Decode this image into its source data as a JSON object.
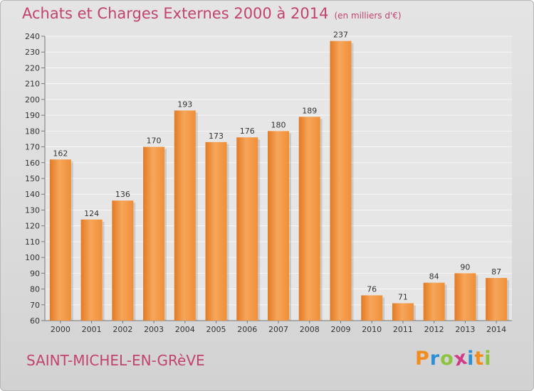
{
  "chart_data": {
    "type": "bar",
    "title": "Achats et Charges Externes 2000 à 2014",
    "subtitle": "(en milliers d'€)",
    "categories": [
      "2000",
      "2001",
      "2002",
      "2003",
      "2004",
      "2005",
      "2006",
      "2007",
      "2008",
      "2009",
      "2010",
      "2011",
      "2012",
      "2013",
      "2014"
    ],
    "values": [
      162,
      124,
      136,
      170,
      193,
      173,
      176,
      180,
      189,
      237,
      76,
      71,
      84,
      90,
      87
    ],
    "ylim": [
      60,
      240
    ],
    "yticks": [
      60,
      70,
      80,
      90,
      100,
      110,
      120,
      130,
      140,
      150,
      160,
      170,
      180,
      190,
      200,
      210,
      220,
      230,
      240
    ],
    "grid": true,
    "legend": "none",
    "bar_color": "#ef8f38",
    "bar_color_light": "#f6a65a",
    "bar_color_dark": "#e27a24"
  },
  "footer": {
    "city": "SAINT-MICHEL-EN-GRèVE",
    "logo_letters": [
      "P",
      "r",
      "o",
      "x",
      "i",
      "t",
      "i"
    ],
    "logo_colors": [
      "#f28c1f",
      "#2f8fd5",
      "#8cc33f",
      "#d23a8a",
      "#2f8fd5",
      "#f28c1f",
      "#8cc33f"
    ]
  }
}
